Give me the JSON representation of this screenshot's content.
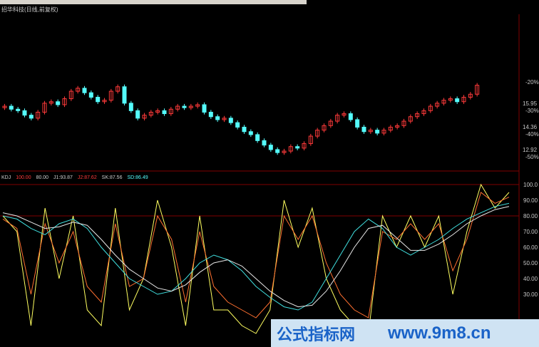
{
  "window": {
    "title": "招华科技(日线,前复权)"
  },
  "colors": {
    "up": "#ff3a3a",
    "down": "#54fcfc",
    "J": "#ffff60",
    "K": "#ff7030",
    "SK": "#40e0e0",
    "SD": "#e8e8e8",
    "border": "#800000"
  },
  "legend": {
    "name": "KDJ",
    "p1": "100.00",
    "p2": "80.00",
    "j1": "J1:93.87",
    "j2": "J2:87.62",
    "sk": "SK:87.56",
    "sd": "SD:86.49"
  },
  "watermark": {
    "left": "公式指标网",
    "right": "www.9m8.cn"
  },
  "chart_data": [
    {
      "type": "candlestick",
      "price_ticks": [
        "15.95",
        "14.36",
        "12.92"
      ],
      "pct_ticks": [
        "-20%",
        "-30%",
        "-40%",
        "-50%"
      ],
      "close": [
        15.9,
        15.7,
        15.6,
        15.3,
        15.1,
        15.5,
        16.1,
        16.2,
        16.0,
        16.4,
        16.9,
        17.1,
        16.8,
        16.5,
        16.2,
        16.3,
        16.9,
        17.2,
        16.1,
        15.6,
        15.1,
        15.3,
        15.5,
        15.6,
        15.4,
        15.7,
        15.9,
        15.8,
        15.9,
        16.0,
        15.5,
        15.2,
        15.0,
        15.1,
        14.8,
        14.5,
        14.2,
        14.0,
        13.6,
        13.3,
        13.0,
        12.8,
        12.9,
        13.2,
        13.1,
        13.4,
        13.9,
        14.3,
        14.6,
        14.9,
        15.3,
        15.4,
        15.0,
        14.5,
        14.2,
        14.3,
        14.1,
        14.3,
        14.5,
        14.6,
        14.9,
        15.2,
        15.4,
        15.6,
        15.9,
        16.1,
        16.3,
        16.4,
        16.2,
        16.5,
        16.7,
        17.3
      ]
    },
    {
      "type": "line",
      "yticks": [
        "100.0",
        "90.00",
        "80.00",
        "70.00",
        "60.00",
        "50.00",
        "40.00",
        "30.00"
      ],
      "ylim": [
        20,
        100
      ],
      "hlines": [
        100,
        80
      ],
      "series": [
        {
          "name": "J",
          "values": [
            80,
            70,
            10,
            85,
            40,
            80,
            20,
            10,
            85,
            20,
            40,
            90,
            60,
            10,
            80,
            20,
            20,
            10,
            5,
            20,
            90,
            60,
            85,
            40,
            20,
            10,
            5,
            80,
            60,
            80,
            60,
            80,
            30,
            70,
            100,
            85,
            95
          ]
        },
        {
          "name": "K",
          "values": [
            78,
            72,
            30,
            75,
            50,
            70,
            35,
            25,
            75,
            35,
            40,
            80,
            65,
            25,
            70,
            35,
            25,
            20,
            15,
            25,
            80,
            65,
            80,
            50,
            30,
            20,
            15,
            70,
            65,
            75,
            65,
            75,
            45,
            65,
            95,
            88,
            92
          ]
        },
        {
          "name": "SK",
          "values": [
            80,
            78,
            72,
            68,
            75,
            78,
            72,
            60,
            50,
            40,
            35,
            30,
            32,
            40,
            50,
            55,
            52,
            45,
            35,
            28,
            22,
            20,
            25,
            40,
            55,
            70,
            78,
            72,
            60,
            55,
            60,
            65,
            72,
            78,
            82,
            86,
            88
          ]
        },
        {
          "name": "SD",
          "values": [
            82,
            80,
            76,
            72,
            73,
            76,
            74,
            65,
            55,
            46,
            40,
            34,
            32,
            36,
            44,
            50,
            52,
            48,
            40,
            32,
            26,
            22,
            23,
            32,
            45,
            60,
            72,
            74,
            66,
            58,
            58,
            62,
            68,
            75,
            80,
            84,
            86
          ]
        }
      ]
    }
  ]
}
